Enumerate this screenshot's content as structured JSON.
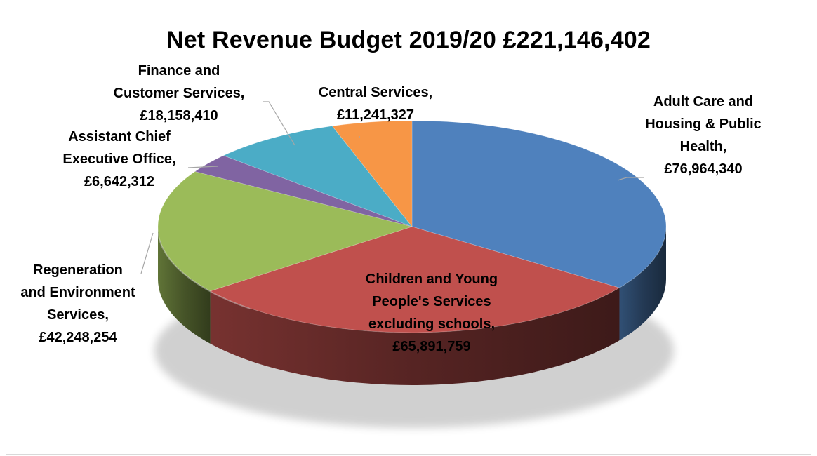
{
  "chart_data": {
    "type": "pie",
    "title": "Net Revenue Budget 2019/20 £221,146,402",
    "total": 221146402,
    "slices": [
      {
        "name": "Adult Care and Housing & Public Health",
        "value": 76964340,
        "label_lines": [
          "Adult Care and",
          "Housing & Public",
          "Health,",
          "£76,964,340"
        ],
        "color": "#4f81bd"
      },
      {
        "name": "Children and Young People's Services excluding schools",
        "value": 65891759,
        "label_lines": [
          "Children and Young",
          "People's Services",
          "excluding schools,",
          "£65,891,759"
        ],
        "color": "#c0504d"
      },
      {
        "name": "Regeneration and Environment Services",
        "value": 42248254,
        "label_lines": [
          "Regeneration",
          "and Environment",
          "Services,",
          "£42,248,254"
        ],
        "color": "#9bbb59"
      },
      {
        "name": "Assistant Chief Executive Office",
        "value": 6642312,
        "label_lines": [
          "Assistant Chief",
          "Executive Office,",
          "£6,642,312"
        ],
        "color": "#8064a2"
      },
      {
        "name": "Finance and Customer Services",
        "value": 18158410,
        "label_lines": [
          "Finance and",
          "Customer Services,",
          "£18,158,410"
        ],
        "color": "#4bacc6"
      },
      {
        "name": "Central Services",
        "value": 11241327,
        "label_lines": [
          "Central Services,",
          "£11,241,327"
        ],
        "color": "#f79646"
      }
    ],
    "legend": "none",
    "style": "3d-pie"
  }
}
